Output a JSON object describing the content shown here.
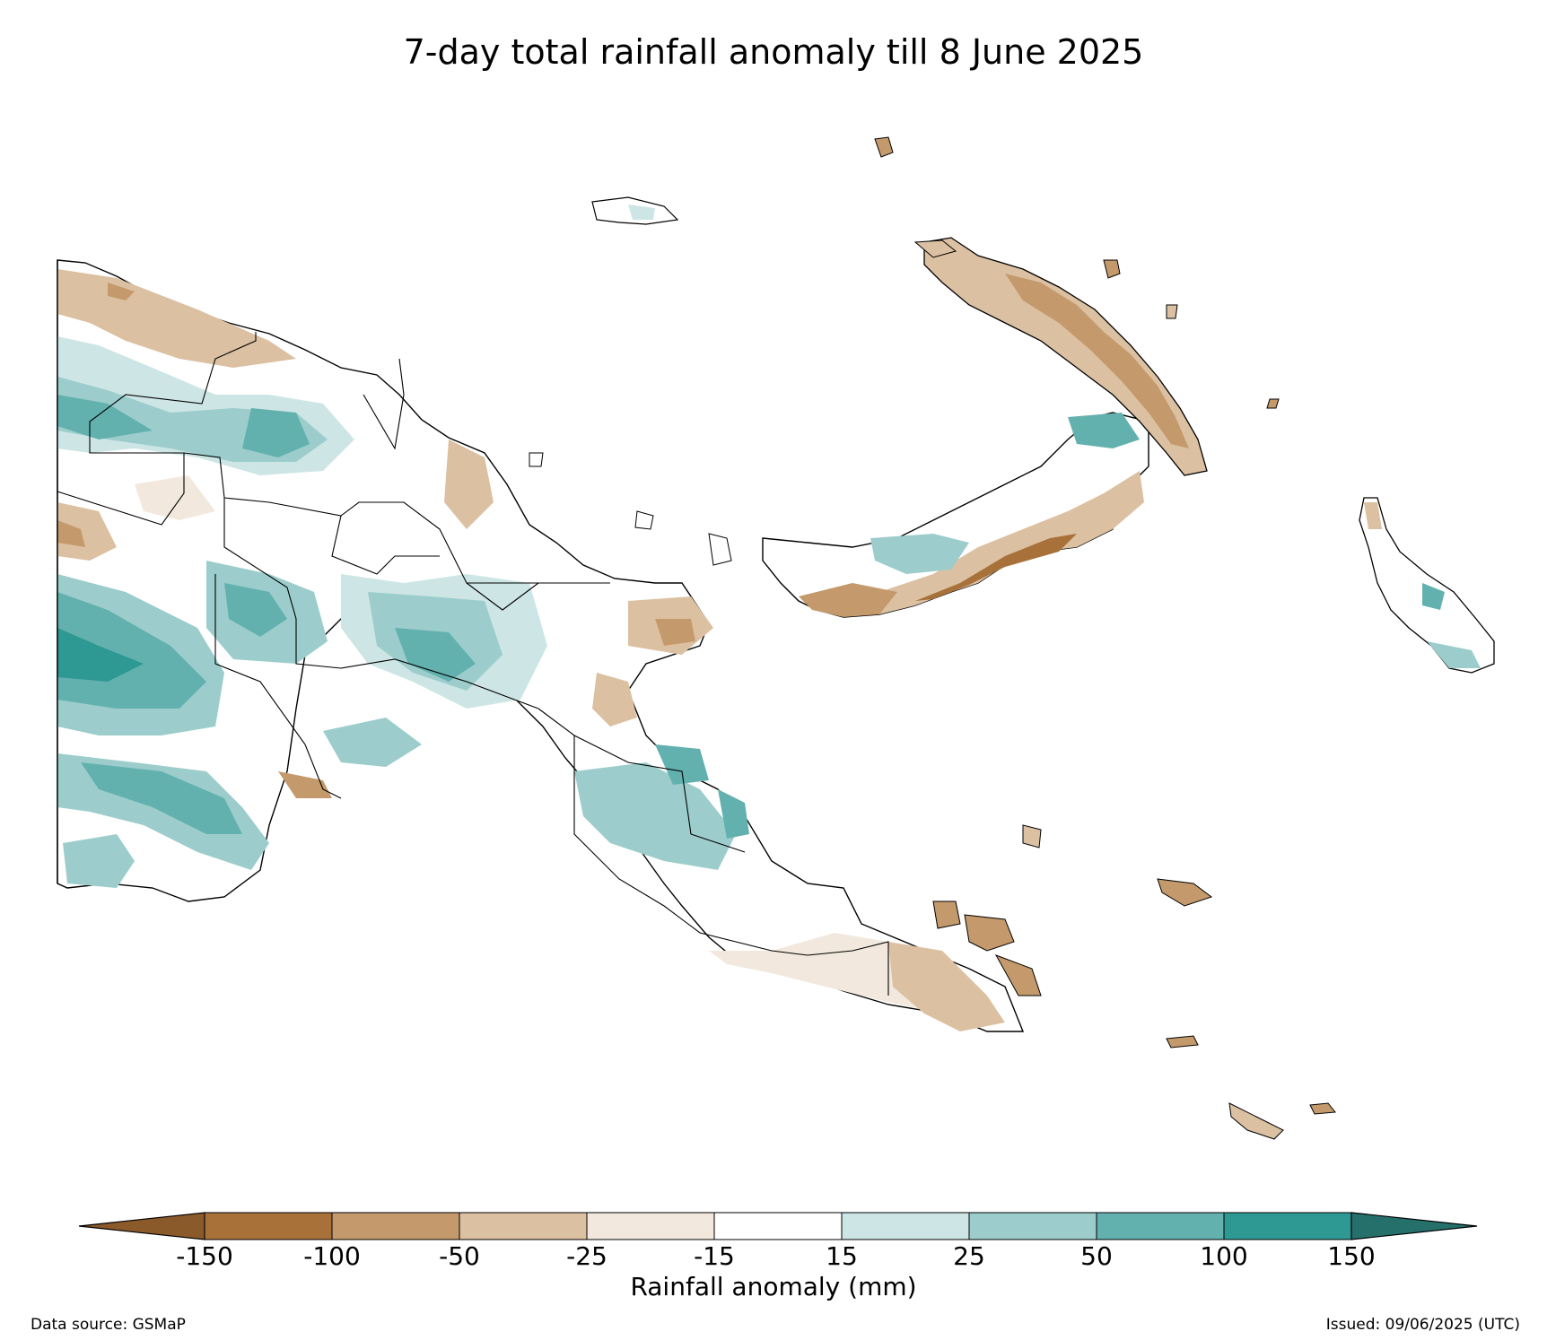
{
  "title": "7-day total rainfall anomaly till 8 June 2025",
  "colorbar": {
    "label": "Rainfall anomaly (mm)",
    "ticks": [
      "-150",
      "-100",
      "-50",
      "-25",
      "-15",
      "15",
      "25",
      "50",
      "100",
      "150"
    ],
    "colors": [
      "#8b5a2b",
      "#a8713a",
      "#c49a6c",
      "#dcc0a2",
      "#f2e8dd",
      "#ffffff",
      "#cde6e5",
      "#9ccdcc",
      "#62b1ae",
      "#2e9893",
      "#26706c"
    ]
  },
  "footer": {
    "source": "Data source: GSMaP",
    "issued": "Issued: 09/06/2025 (UTC)"
  }
}
